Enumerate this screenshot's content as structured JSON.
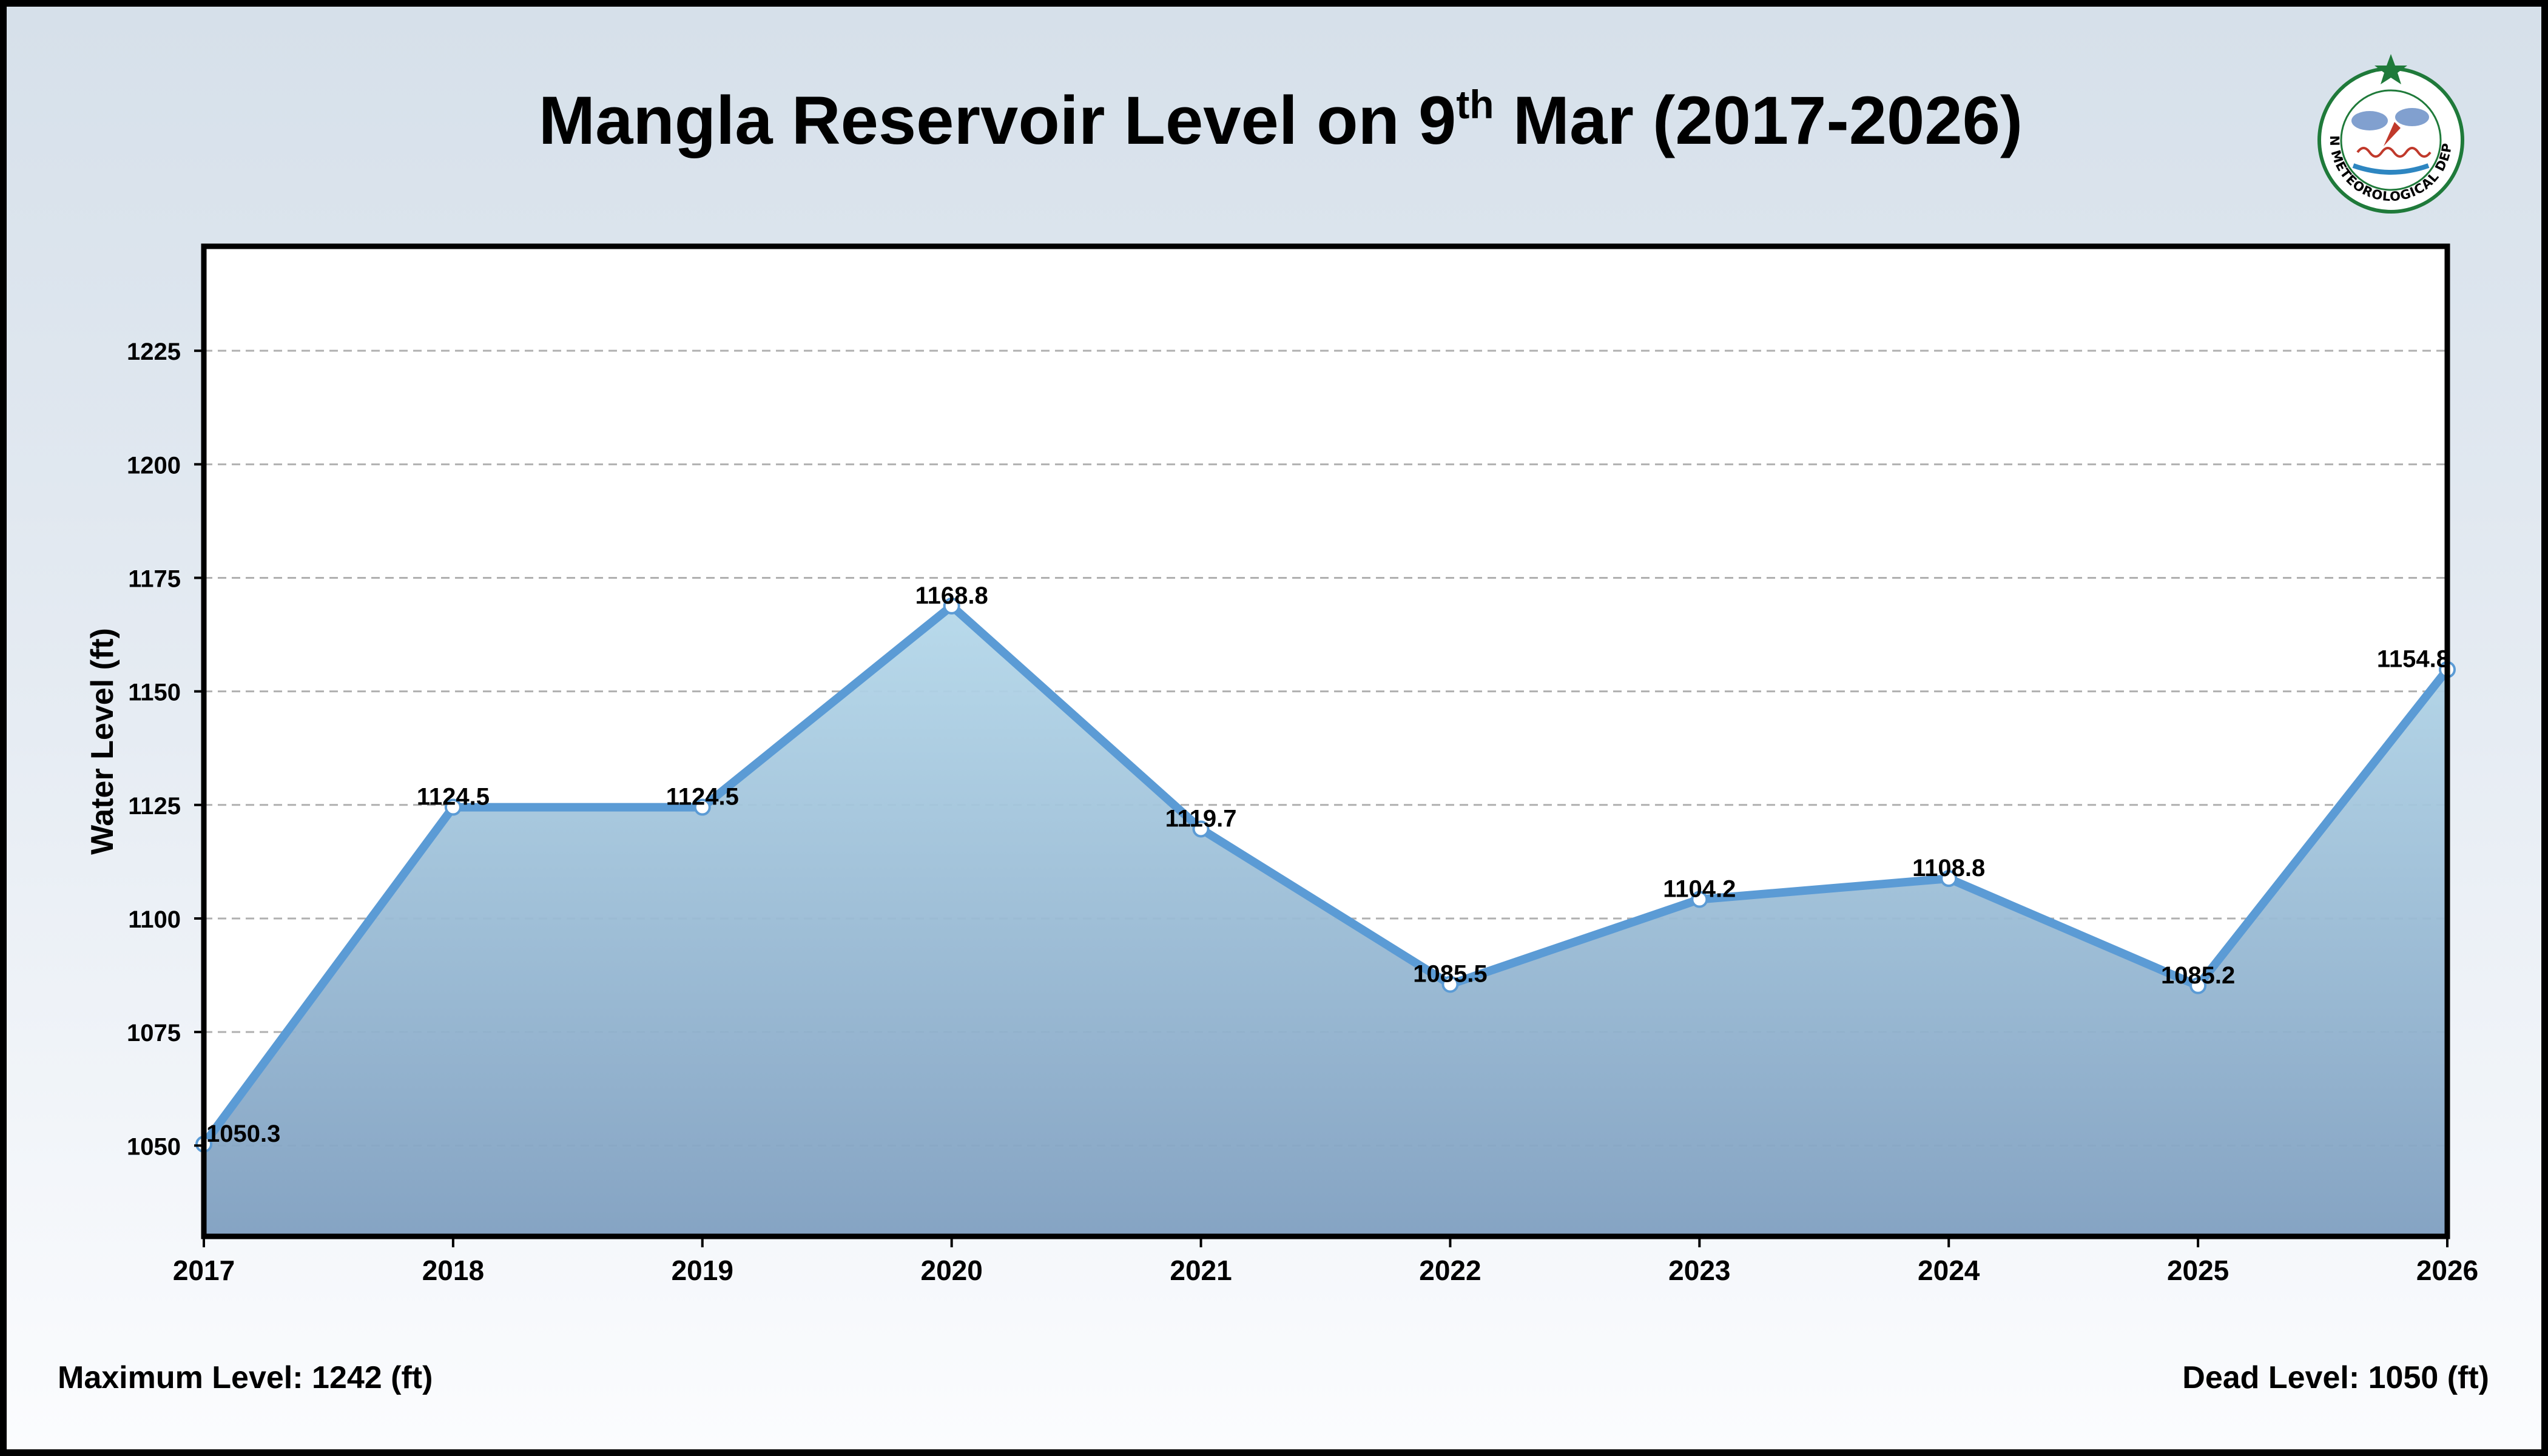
{
  "chart_data": {
    "type": "area",
    "title": {
      "prefix": "Mangla Reservoir Level on 9",
      "superscript": "th",
      "suffix": " Mar (2017-2026)"
    },
    "xlabel": "",
    "ylabel": "Water Level (ft)",
    "x": [
      2017,
      2018,
      2019,
      2020,
      2021,
      2022,
      2023,
      2024,
      2025,
      2026
    ],
    "x_tick_labels": [
      "2017",
      "2018",
      "2019",
      "2020",
      "2021",
      "2022",
      "2023",
      "2024",
      "2025",
      "2026"
    ],
    "values": [
      1050.3,
      1124.5,
      1124.5,
      1168.8,
      1119.7,
      1085.5,
      1104.2,
      1108.8,
      1085.2,
      1154.8
    ],
    "data_labels": [
      "1050.3",
      "1124.5",
      "1124.5",
      "1168.8",
      "1119.7",
      "1085.5",
      "1104.2",
      "1108.8",
      "1085.2",
      "1154.8"
    ],
    "ylim": [
      1030,
      1248
    ],
    "y_ticks": [
      1050,
      1075,
      1100,
      1125,
      1150,
      1175,
      1200,
      1225
    ],
    "grid": true,
    "legend": "none"
  },
  "footer": {
    "max_level": "Maximum Level: 1242 (ft)",
    "dead_level": "Dead Level: 1050 (ft)"
  },
  "logo": {
    "org_name": "PAKISTAN METEOROLOGICAL DEPARTMENT"
  },
  "colors": {
    "line": "#5b9bd5",
    "fill_top": "#b5d8ea",
    "fill_bottom": "#7f9fc0",
    "grid": "#b0b0b0",
    "logo_green": "#1f7a3a"
  }
}
